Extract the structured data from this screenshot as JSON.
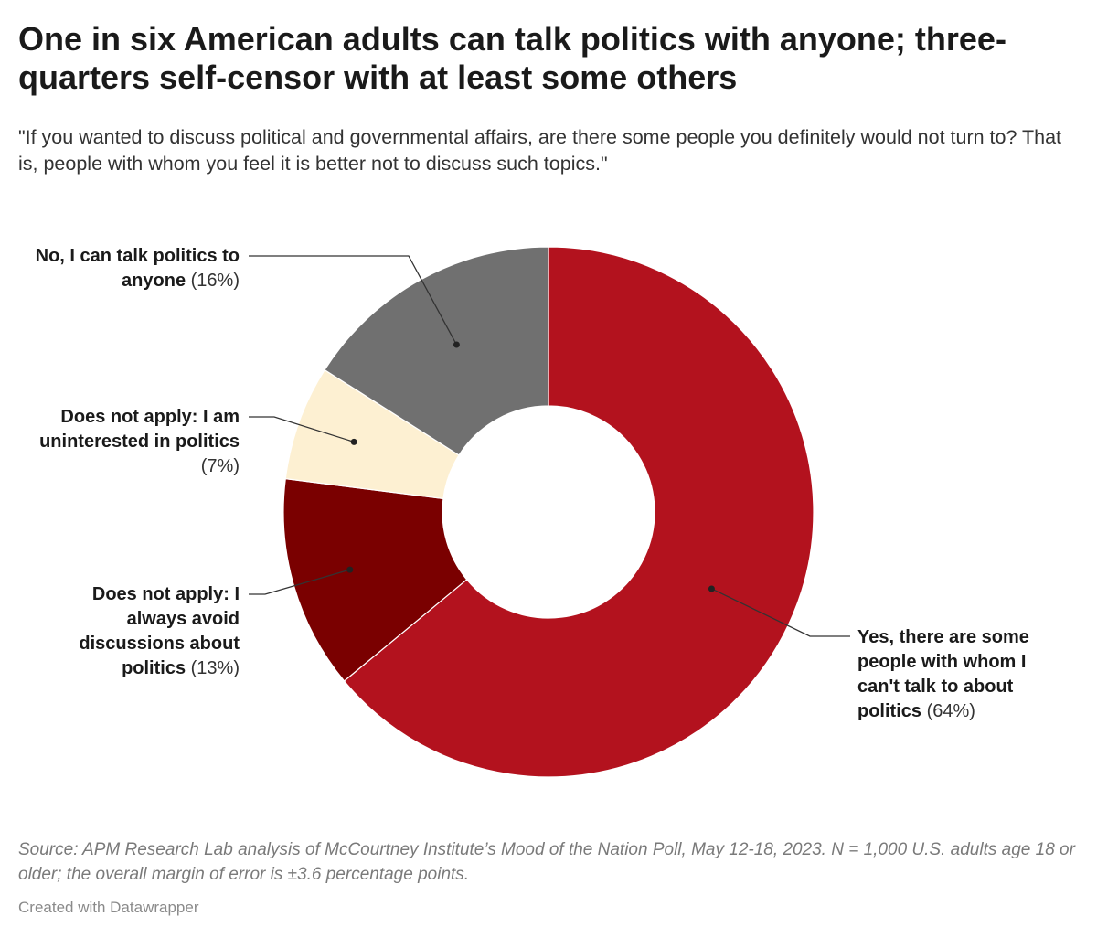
{
  "header": {
    "title": "One in six American adults can talk politics with anyone; three-quarters self-censor with at least some others",
    "subtitle": "\"If you wanted to discuss political and governmental affairs, are there some people you definitely would not turn to? That is, people with whom you feel it is better not to discuss such topics.\""
  },
  "chart_data": {
    "type": "pie",
    "donut": true,
    "legend": "none",
    "slices": [
      {
        "label": "Yes, there are some people with whom I can't talk to about politics",
        "value": 64,
        "value_label": "(64%)",
        "color": "#b3121e"
      },
      {
        "label": "Does not apply: I always avoid discussions about politics",
        "value": 13,
        "value_label": "(13%)",
        "color": "#7a0000"
      },
      {
        "label": "Does not apply: I am uninterested in politics",
        "value": 7,
        "value_label": "(7%)",
        "color": "#fdf0d2"
      },
      {
        "label": "No, I can talk politics to anyone",
        "value": 16,
        "value_label": "(16%)",
        "color": "#707070"
      }
    ]
  },
  "footer": {
    "source": "Source: APM Research Lab analysis of McCourtney Institute’s Mood of the Nation Poll, May 12-18, 2023. N = 1,000 U.S. adults age 18 or older; the overall margin of error is ±3.6 percentage points.",
    "credit": "Created with Datawrapper"
  }
}
